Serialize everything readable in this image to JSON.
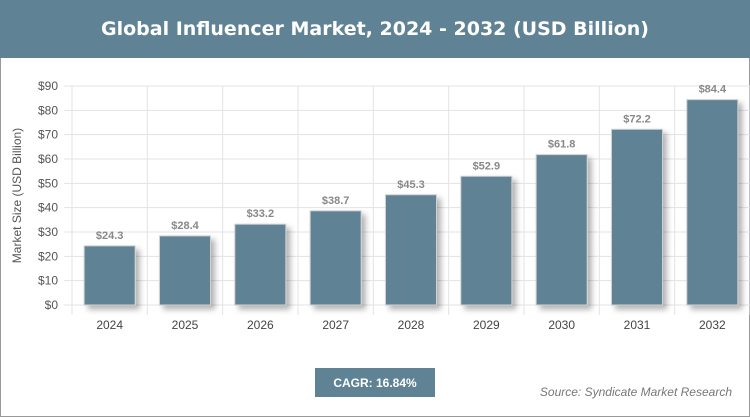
{
  "header": {
    "title": "Global Influencer Market, 2024 - 2032 (USD Billion)"
  },
  "chart_data": {
    "type": "bar",
    "title": "Global Influencer Market, 2024 - 2032 (USD Billion)",
    "categories": [
      "2024",
      "2025",
      "2026",
      "2027",
      "2028",
      "2029",
      "2030",
      "2031",
      "2032"
    ],
    "values": [
      24.3,
      28.4,
      33.2,
      38.7,
      45.3,
      52.9,
      61.8,
      72.2,
      84.4
    ],
    "data_labels": [
      "$24.3",
      "$28.4",
      "$33.2",
      "$38.7",
      "$45.3",
      "$52.9",
      "$61.8",
      "$72.2",
      "$84.4"
    ],
    "ylabel": "Market Size (USD Billion)",
    "xlabel": "",
    "ylim": [
      0,
      90
    ],
    "yticks": [
      "$0",
      "$10",
      "$20",
      "$30",
      "$40",
      "$50",
      "$60",
      "$70",
      "$80",
      "$90"
    ],
    "grid": true,
    "bar_color": "#5f8394"
  },
  "footer": {
    "cagr": "CAGR: 16.84%",
    "source": "Source: Syndicate Market Research"
  }
}
